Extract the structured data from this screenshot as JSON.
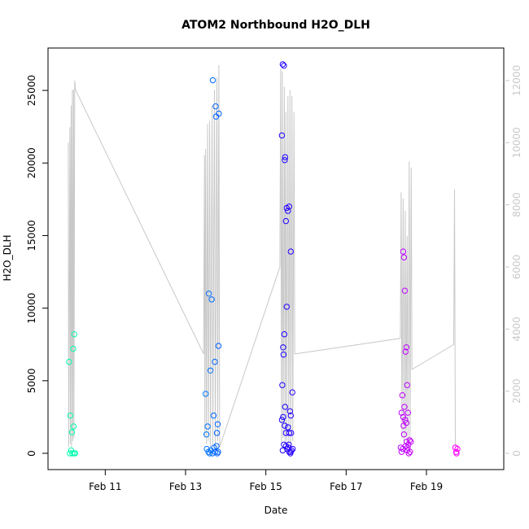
{
  "chart_data": {
    "type": "scatter",
    "title": "ATOM2 Northbound H2O_DLH",
    "xlabel": "Date",
    "ylabel": "H2O_DLH",
    "x_unit": "days (February)",
    "xlim": [
      10.0,
      20.5
    ],
    "ylim": [
      0,
      26800
    ],
    "x_ticks": [
      {
        "value": 11,
        "label": "Feb 11"
      },
      {
        "value": 13,
        "label": "Feb 13"
      },
      {
        "value": 15,
        "label": "Feb 15"
      },
      {
        "value": 17,
        "label": "Feb 17"
      },
      {
        "value": 19,
        "label": "Feb 19"
      }
    ],
    "y_ticks": [
      0,
      5000,
      10000,
      15000,
      20000,
      25000
    ],
    "y2_ticks": [
      0,
      2000,
      4000,
      6000,
      8000,
      10000,
      12000
    ],
    "y2lim": [
      0,
      12000
    ],
    "colors": {
      "line": "#c8c8c8",
      "right_axis": "#c8c8c8",
      "point_gradient": [
        "#00ffaa",
        "#00ccff",
        "#0000ff",
        "#8800ff",
        "#ff00ff"
      ]
    },
    "scatter_series": {
      "name": "H2O_DLH",
      "points": [
        {
          "x": 10.1,
          "y": 6300
        },
        {
          "x": 10.13,
          "y": 2600
        },
        {
          "x": 10.17,
          "y": 1450
        },
        {
          "x": 10.2,
          "y": 7200
        },
        {
          "x": 10.23,
          "y": 8200
        },
        {
          "x": 10.21,
          "y": 1850
        },
        {
          "x": 10.12,
          "y": 0
        },
        {
          "x": 10.15,
          "y": 200
        },
        {
          "x": 10.18,
          "y": 0
        },
        {
          "x": 10.22,
          "y": 0
        },
        {
          "x": 10.25,
          "y": 0
        },
        {
          "x": 13.5,
          "y": 4100
        },
        {
          "x": 13.52,
          "y": 1300
        },
        {
          "x": 13.55,
          "y": 1850
        },
        {
          "x": 13.58,
          "y": 11000
        },
        {
          "x": 13.62,
          "y": 5700
        },
        {
          "x": 13.65,
          "y": 10600
        },
        {
          "x": 13.68,
          "y": 25700
        },
        {
          "x": 13.7,
          "y": 2600
        },
        {
          "x": 13.73,
          "y": 6300
        },
        {
          "x": 13.75,
          "y": 23900
        },
        {
          "x": 13.76,
          "y": 23200
        },
        {
          "x": 13.78,
          "y": 1400
        },
        {
          "x": 13.8,
          "y": 2000
        },
        {
          "x": 13.82,
          "y": 7400
        },
        {
          "x": 13.83,
          "y": 23400
        },
        {
          "x": 13.53,
          "y": 300
        },
        {
          "x": 13.57,
          "y": 100
        },
        {
          "x": 13.6,
          "y": 0
        },
        {
          "x": 13.63,
          "y": 200
        },
        {
          "x": 13.67,
          "y": 0
        },
        {
          "x": 13.71,
          "y": 400
        },
        {
          "x": 13.74,
          "y": 100
        },
        {
          "x": 13.77,
          "y": 500
        },
        {
          "x": 13.79,
          "y": 0
        },
        {
          "x": 13.81,
          "y": 100
        },
        {
          "x": 15.4,
          "y": 21900
        },
        {
          "x": 15.42,
          "y": 26800
        },
        {
          "x": 15.45,
          "y": 26700
        },
        {
          "x": 15.47,
          "y": 20200
        },
        {
          "x": 15.48,
          "y": 20400
        },
        {
          "x": 15.5,
          "y": 16000
        },
        {
          "x": 15.52,
          "y": 16900
        },
        {
          "x": 15.55,
          "y": 16700
        },
        {
          "x": 15.58,
          "y": 17000
        },
        {
          "x": 15.62,
          "y": 13900
        },
        {
          "x": 15.52,
          "y": 10100
        },
        {
          "x": 15.46,
          "y": 8200
        },
        {
          "x": 15.43,
          "y": 7300
        },
        {
          "x": 15.44,
          "y": 6800
        },
        {
          "x": 15.41,
          "y": 4700
        },
        {
          "x": 15.48,
          "y": 3200
        },
        {
          "x": 15.66,
          "y": 4200
        },
        {
          "x": 15.6,
          "y": 2900
        },
        {
          "x": 15.62,
          "y": 2600
        },
        {
          "x": 15.4,
          "y": 2300
        },
        {
          "x": 15.43,
          "y": 2500
        },
        {
          "x": 15.47,
          "y": 1900
        },
        {
          "x": 15.55,
          "y": 1800
        },
        {
          "x": 15.5,
          "y": 1400
        },
        {
          "x": 15.58,
          "y": 1400
        },
        {
          "x": 15.63,
          "y": 1400
        },
        {
          "x": 15.45,
          "y": 600
        },
        {
          "x": 15.5,
          "y": 500
        },
        {
          "x": 15.53,
          "y": 300
        },
        {
          "x": 15.56,
          "y": 400
        },
        {
          "x": 15.58,
          "y": 100
        },
        {
          "x": 15.61,
          "y": 0
        },
        {
          "x": 15.64,
          "y": 200
        },
        {
          "x": 15.67,
          "y": 300
        },
        {
          "x": 15.42,
          "y": 200
        },
        {
          "x": 15.57,
          "y": 600
        },
        {
          "x": 15.62,
          "y": 100
        },
        {
          "x": 18.38,
          "y": 2800
        },
        {
          "x": 18.4,
          "y": 4000
        },
        {
          "x": 18.42,
          "y": 13900
        },
        {
          "x": 18.44,
          "y": 13500
        },
        {
          "x": 18.46,
          "y": 11200
        },
        {
          "x": 18.48,
          "y": 7000
        },
        {
          "x": 18.5,
          "y": 7300
        },
        {
          "x": 18.52,
          "y": 4700
        },
        {
          "x": 18.54,
          "y": 2800
        },
        {
          "x": 18.45,
          "y": 3200
        },
        {
          "x": 18.42,
          "y": 2500
        },
        {
          "x": 18.47,
          "y": 2300
        },
        {
          "x": 18.43,
          "y": 1900
        },
        {
          "x": 18.5,
          "y": 2100
        },
        {
          "x": 18.44,
          "y": 1300
        },
        {
          "x": 18.51,
          "y": 800
        },
        {
          "x": 18.53,
          "y": 400
        },
        {
          "x": 18.55,
          "y": 600
        },
        {
          "x": 18.58,
          "y": 900
        },
        {
          "x": 18.61,
          "y": 800
        },
        {
          "x": 18.36,
          "y": 400
        },
        {
          "x": 18.38,
          "y": 100
        },
        {
          "x": 18.41,
          "y": 300
        },
        {
          "x": 18.48,
          "y": 500
        },
        {
          "x": 18.56,
          "y": 0
        },
        {
          "x": 18.59,
          "y": 100
        },
        {
          "x": 18.52,
          "y": 200
        },
        {
          "x": 19.72,
          "y": 400
        },
        {
          "x": 19.74,
          "y": 100
        },
        {
          "x": 19.75,
          "y": 0
        },
        {
          "x": 19.77,
          "y": 300
        }
      ]
    },
    "line_series": {
      "name": "",
      "axis": "right",
      "points": [
        {
          "x": 10.08,
          "y": 10000
        },
        {
          "x": 10.09,
          "y": 200
        },
        {
          "x": 10.12,
          "y": 10500
        },
        {
          "x": 10.13,
          "y": 300
        },
        {
          "x": 10.15,
          "y": 11200
        },
        {
          "x": 10.16,
          "y": 200
        },
        {
          "x": 10.18,
          "y": 11700
        },
        {
          "x": 10.19,
          "y": 400
        },
        {
          "x": 10.21,
          "y": 11700
        },
        {
          "x": 10.22,
          "y": 500
        },
        {
          "x": 10.24,
          "y": 12000
        },
        {
          "x": 10.26,
          "y": 11700
        },
        {
          "x": 13.45,
          "y": 3200
        },
        {
          "x": 13.47,
          "y": 9600
        },
        {
          "x": 13.48,
          "y": 500
        },
        {
          "x": 13.5,
          "y": 9800
        },
        {
          "x": 13.52,
          "y": 300
        },
        {
          "x": 13.55,
          "y": 10600
        },
        {
          "x": 13.57,
          "y": 400
        },
        {
          "x": 13.6,
          "y": 10700
        },
        {
          "x": 13.62,
          "y": 200
        },
        {
          "x": 13.66,
          "y": 11200
        },
        {
          "x": 13.68,
          "y": 300
        },
        {
          "x": 13.72,
          "y": 11700
        },
        {
          "x": 13.74,
          "y": 200
        },
        {
          "x": 13.78,
          "y": 12100
        },
        {
          "x": 13.8,
          "y": 400
        },
        {
          "x": 13.83,
          "y": 12500
        },
        {
          "x": 13.85,
          "y": 200
        },
        {
          "x": 15.35,
          "y": 6000
        },
        {
          "x": 15.37,
          "y": 12400
        },
        {
          "x": 15.39,
          "y": 300
        },
        {
          "x": 15.41,
          "y": 12300
        },
        {
          "x": 15.43,
          "y": 500
        },
        {
          "x": 15.46,
          "y": 11800
        },
        {
          "x": 15.48,
          "y": 300
        },
        {
          "x": 15.5,
          "y": 11000
        },
        {
          "x": 15.52,
          "y": 400
        },
        {
          "x": 15.55,
          "y": 11500
        },
        {
          "x": 15.57,
          "y": 200
        },
        {
          "x": 15.6,
          "y": 11700
        },
        {
          "x": 15.62,
          "y": 300
        },
        {
          "x": 15.65,
          "y": 11500
        },
        {
          "x": 15.67,
          "y": 400
        },
        {
          "x": 15.7,
          "y": 11000
        },
        {
          "x": 15.72,
          "y": 3200
        },
        {
          "x": 18.35,
          "y": 3700
        },
        {
          "x": 18.37,
          "y": 8400
        },
        {
          "x": 18.39,
          "y": 500
        },
        {
          "x": 18.42,
          "y": 8200
        },
        {
          "x": 18.44,
          "y": 300
        },
        {
          "x": 18.47,
          "y": 7800
        },
        {
          "x": 18.49,
          "y": 500
        },
        {
          "x": 18.52,
          "y": 7000
        },
        {
          "x": 18.54,
          "y": 300
        },
        {
          "x": 18.57,
          "y": 9400
        },
        {
          "x": 18.59,
          "y": 400
        },
        {
          "x": 18.62,
          "y": 9200
        },
        {
          "x": 18.64,
          "y": 2700
        },
        {
          "x": 19.68,
          "y": 3500
        },
        {
          "x": 19.7,
          "y": 8500
        },
        {
          "x": 19.72,
          "y": 200
        }
      ]
    }
  }
}
